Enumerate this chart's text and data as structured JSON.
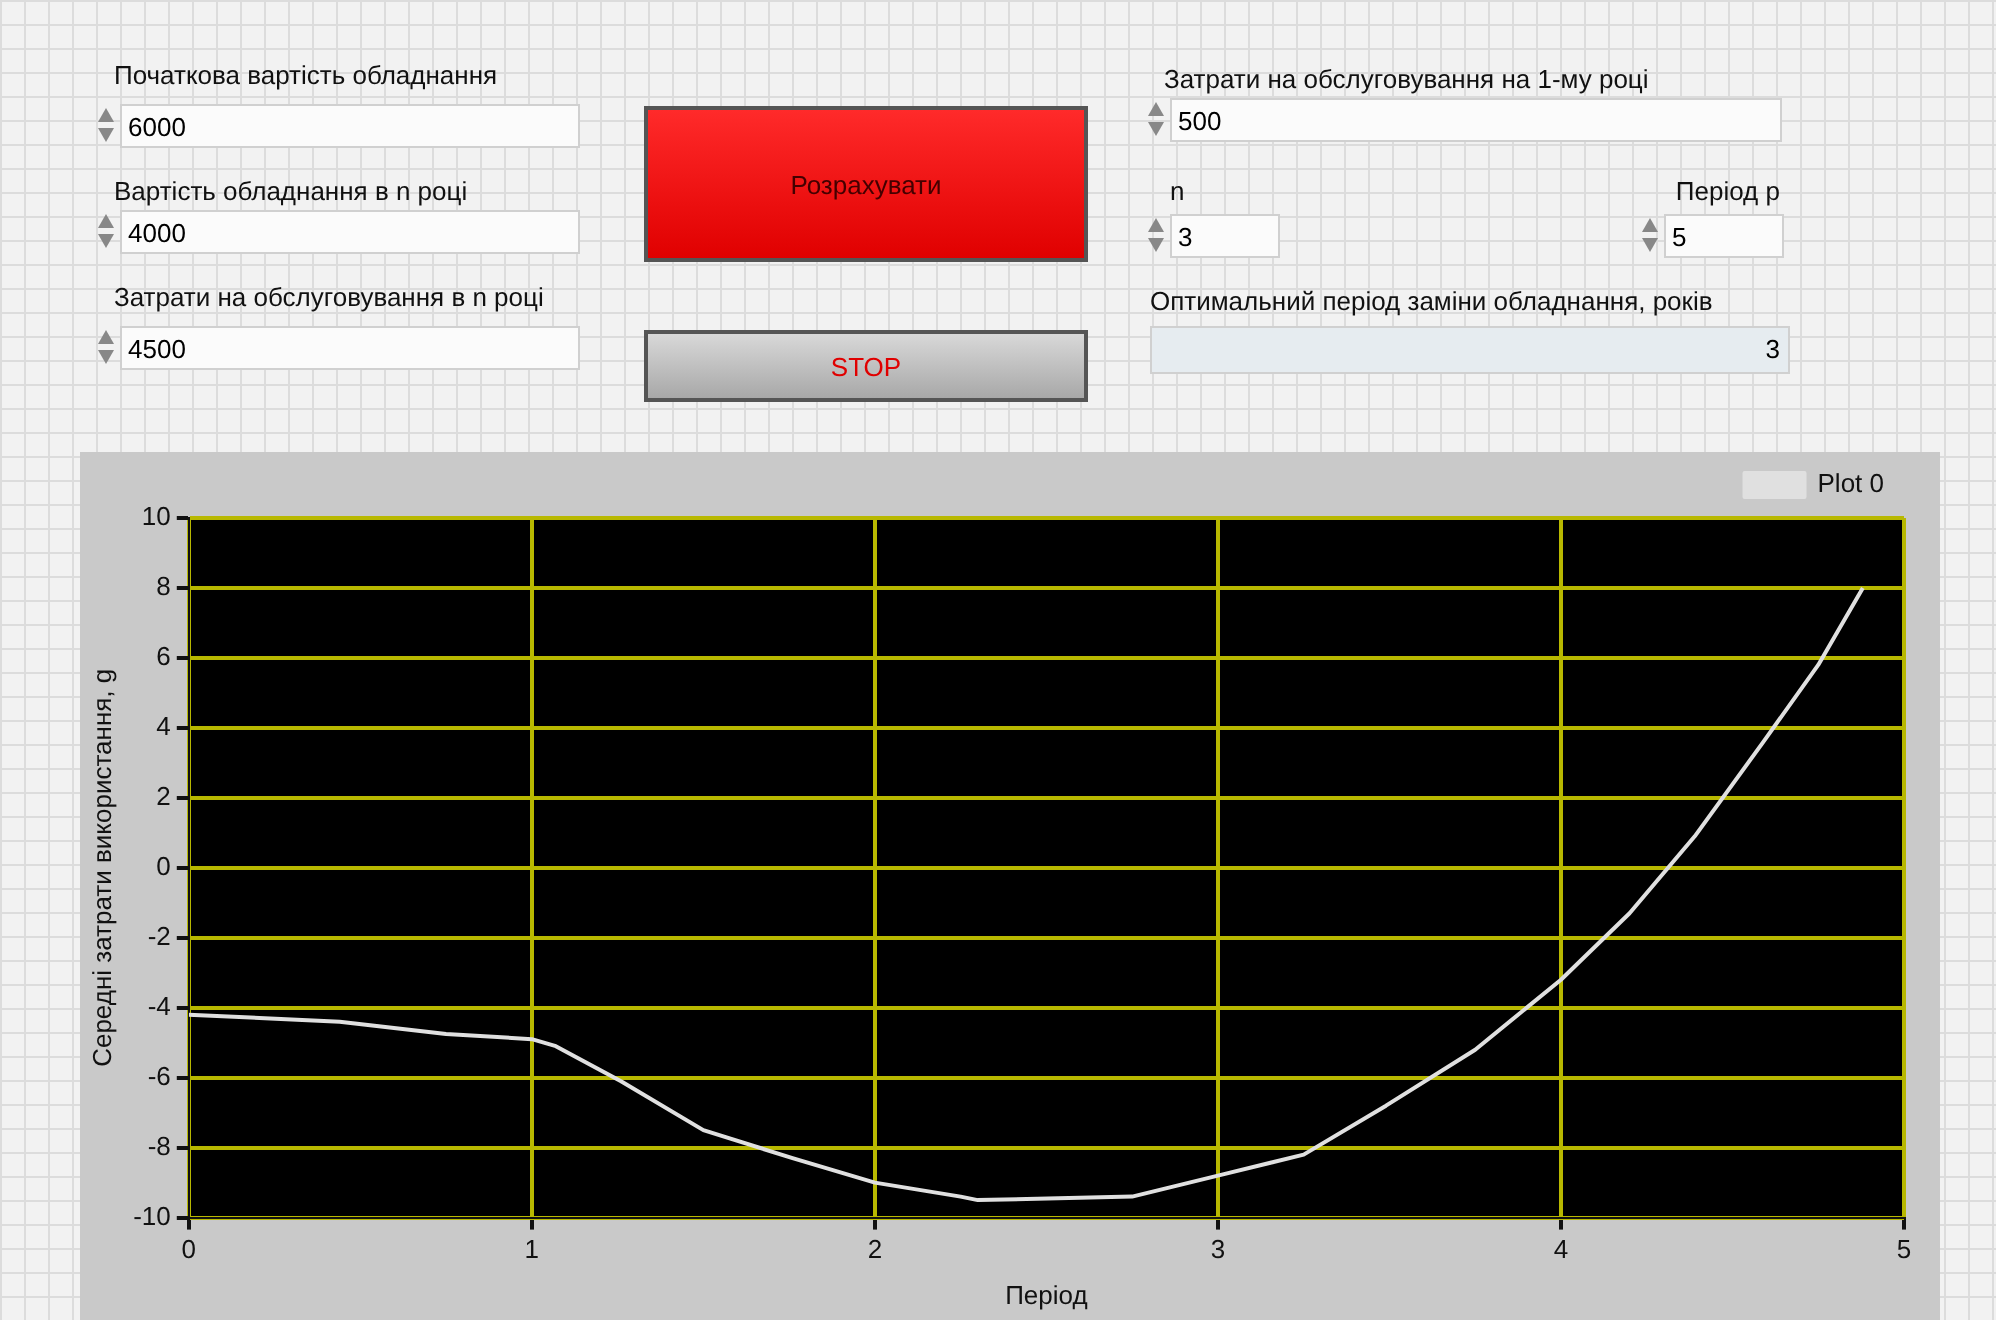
{
  "chart_data": [
    {
      "type": "other",
      "annotations": [
        "Початкова вартість обладнання",
        "6000",
        "Вартість обладнання в n році",
        "4000",
        "Затрати на обслуговування в n році",
        "4500",
        "Розрахувати",
        "STOP",
        "Затрати на обслуговування на 1-му році",
        "500",
        "n",
        "3",
        "Період р",
        "5",
        "Оптимальний період заміни обладнання, років",
        "3"
      ]
    },
    {
      "type": "line",
      "xlabel": "Період",
      "ylabel": "Середні затрати використання, g",
      "xlim": [
        0,
        5
      ],
      "xticks": [
        0,
        1,
        2,
        3,
        4,
        5
      ],
      "ylim": [
        -10,
        10
      ],
      "yticks": [
        -10,
        -8,
        -6,
        -4,
        -2,
        0,
        2,
        4,
        6,
        8,
        10
      ],
      "grid": true,
      "legend": "top right",
      "marker": "none",
      "line_style": "solid",
      "series": [
        {
          "name": "Plot 0",
          "color": "#e0e0e0",
          "x": [
            0,
            0.44,
            0.75,
            1,
            1.07,
            1.26,
            1.5,
            1.76,
            2,
            2.25,
            2.3,
            2.75,
            3,
            3.25,
            3.49,
            3.75,
            4,
            4.2,
            4.39,
            4.59,
            4.75,
            4.88
          ],
          "values": [
            -4.2,
            -4.4,
            -4.75,
            -4.9,
            -5.1,
            -6.1,
            -7.5,
            -8.3,
            -9,
            -9.4,
            -9.5,
            -9.4,
            -8.8,
            -8.2,
            -6.8,
            -5.2,
            -3.2,
            -1.3,
            0.9,
            3.6,
            5.8,
            8
          ]
        }
      ]
    }
  ]
}
